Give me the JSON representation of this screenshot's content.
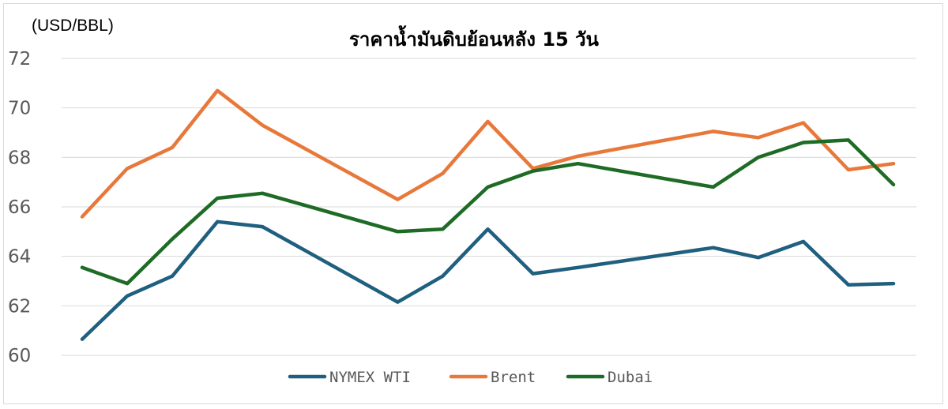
{
  "chart_data": {
    "type": "line",
    "title": "ราคาน้ำมันดิบย้อนหลัง 15 วัน",
    "ylabel": "(USD/BBL)",
    "xlabel": "",
    "ylim": [
      60,
      72
    ],
    "yticks": [
      60,
      62,
      64,
      66,
      68,
      70,
      72
    ],
    "grid": true,
    "legend_position": "bottom",
    "x": [
      0,
      1,
      2,
      3,
      4,
      7,
      8,
      9,
      10,
      11,
      14,
      15,
      16,
      17,
      18
    ],
    "series": [
      {
        "name": "NYMEX WTI",
        "color": "#1f5f7f",
        "values": [
          60.65,
          62.4,
          63.2,
          65.4,
          65.2,
          62.15,
          63.2,
          65.1,
          63.3,
          63.55,
          64.35,
          63.95,
          64.6,
          62.85,
          62.9
        ]
      },
      {
        "name": "Brent",
        "color": "#e8783a",
        "values": [
          65.6,
          67.55,
          68.4,
          70.7,
          69.3,
          66.3,
          67.35,
          69.45,
          67.55,
          68.05,
          69.05,
          68.8,
          69.4,
          67.5,
          67.75
        ]
      },
      {
        "name": "Dubai",
        "color": "#1e6b25",
        "values": [
          63.55,
          62.9,
          64.7,
          66.35,
          66.55,
          65.0,
          65.1,
          66.8,
          67.45,
          67.75,
          66.8,
          68.0,
          68.6,
          68.7,
          66.9
        ]
      }
    ]
  }
}
